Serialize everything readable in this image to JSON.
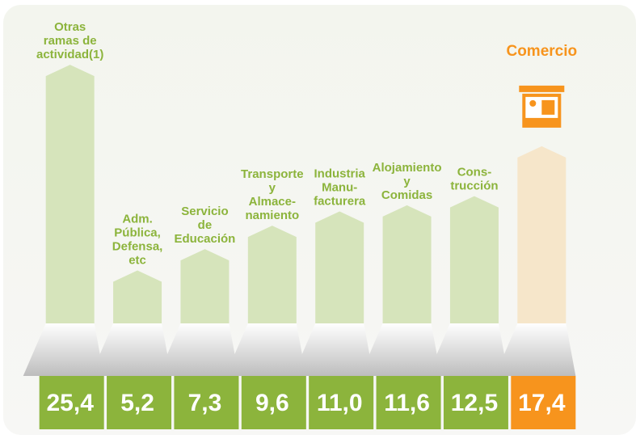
{
  "chart_data": {
    "type": "bar",
    "categories": [
      [
        "Otras",
        "ramas de",
        "actividad(1)"
      ],
      [
        "Adm.",
        "Pública,",
        "Defensa,",
        "etc"
      ],
      [
        "Servicio",
        "de",
        "Educación"
      ],
      [
        "Transporte",
        "y",
        "Almace-",
        "namiento"
      ],
      [
        "Industria",
        "Manu-",
        "facturera"
      ],
      [
        "Alojamiento",
        "y",
        "Comidas"
      ],
      [
        "Cons-",
        "trucción"
      ],
      [
        "Comercio"
      ]
    ],
    "values": [
      25.4,
      5.2,
      7.3,
      9.6,
      11.0,
      11.6,
      12.5,
      17.4
    ],
    "value_labels": [
      "25,4",
      "5,2",
      "7,3",
      "9,6",
      "11,0",
      "11,6",
      "12,5",
      "17,4"
    ],
    "color": "#8cb43c",
    "bar_color": "#d6e4bb",
    "highlight_index": 7,
    "highlight_color": "#f7941d",
    "highlight_bar_color": "#f6e6ca",
    "ylim": [
      0,
      27
    ]
  }
}
